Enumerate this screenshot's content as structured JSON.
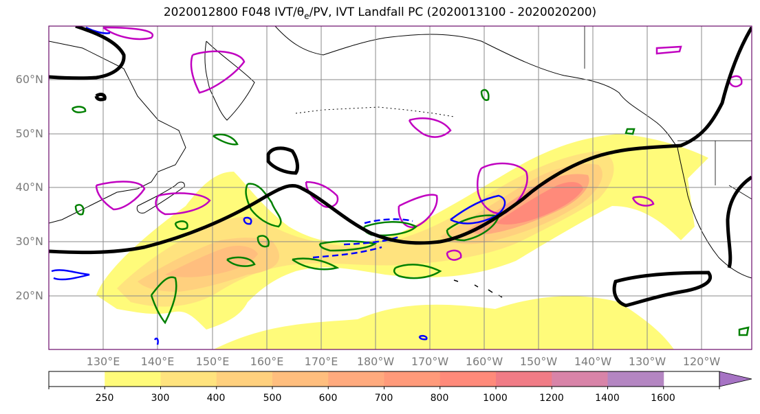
{
  "title": {
    "prefix": "2020012800 F048 IVT/",
    "theta": "θ",
    "theta_sub": "e",
    "suffix": "/PV, IVT Landfall PC (2020013100 - 2020020200)"
  },
  "map": {
    "lat_labels": [
      "60°N",
      "50°N",
      "40°N",
      "30°N",
      "20°N"
    ],
    "lon_labels": [
      "130°E",
      "140°E",
      "150°E",
      "160°E",
      "170°E",
      "180°W",
      "170°W",
      "160°W",
      "150°W",
      "140°W",
      "130°W",
      "120°W"
    ]
  },
  "colorbar": {
    "ticks": [
      "250",
      "300",
      "400",
      "500",
      "600",
      "700",
      "800",
      "1000",
      "1200",
      "1400",
      "1600"
    ],
    "colors": [
      "#ffffff",
      "#fffb7a",
      "#ffe37e",
      "#ffd07e",
      "#ffbe7e",
      "#ffaa7e",
      "#ff9a7a",
      "#ff8a7a",
      "#f07c86",
      "#d884a8",
      "#b486c2"
    ]
  },
  "colors": {
    "theta_e_contour": "#000000",
    "pv_green": "#008000",
    "pv_blue": "#0000ff",
    "pv_magenta": "#c000c0"
  }
}
